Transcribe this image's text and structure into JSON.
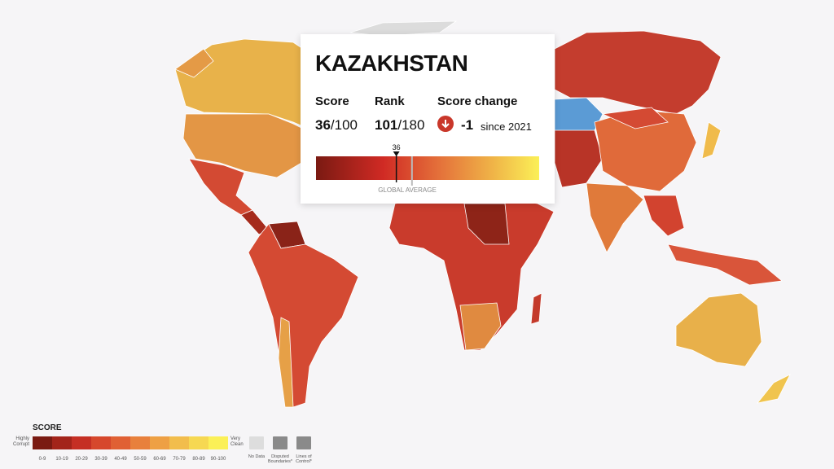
{
  "tooltip": {
    "country": "KAZAKHSTAN",
    "score_label": "Score",
    "score": 36,
    "score_of": "/100",
    "rank_label": "Rank",
    "rank": 101,
    "rank_of": "/180",
    "change_label": "Score change",
    "change": -1,
    "change_since": "since 2021",
    "scale_range": [
      0,
      100
    ],
    "global_average": 43,
    "global_average_label": "GLOBAL AVERAGE"
  },
  "legend": {
    "title": "SCORE",
    "low_label": "Highly Corrupt",
    "high_label": "Very Clean",
    "bins": [
      {
        "label": "0-9",
        "color": "#7a1a12"
      },
      {
        "label": "10-19",
        "color": "#a3241a"
      },
      {
        "label": "20-29",
        "color": "#c52f24"
      },
      {
        "label": "30-39",
        "color": "#d6472c"
      },
      {
        "label": "40-49",
        "color": "#e06034"
      },
      {
        "label": "50-59",
        "color": "#e8803c"
      },
      {
        "label": "60-69",
        "color": "#eea044"
      },
      {
        "label": "70-79",
        "color": "#f2bd4c"
      },
      {
        "label": "80-89",
        "color": "#f6d852"
      },
      {
        "label": "90-100",
        "color": "#fbf057"
      }
    ],
    "extras": [
      "No Data",
      "Disputed Boundaries*",
      "Lines of Control*"
    ]
  }
}
